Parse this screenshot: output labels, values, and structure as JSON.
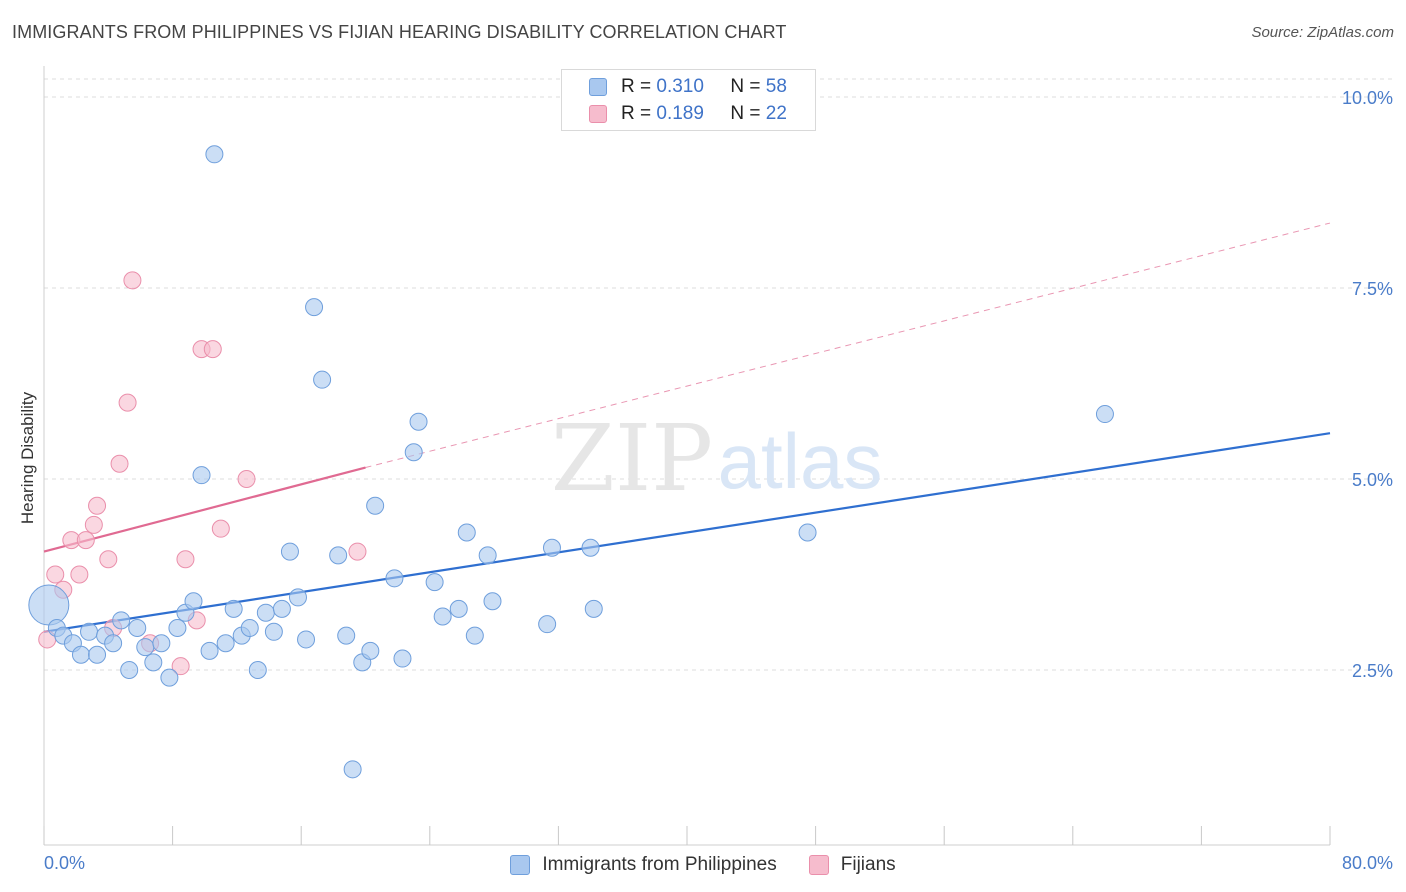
{
  "header": {
    "title": "IMMIGRANTS FROM PHILIPPINES VS FIJIAN HEARING DISABILITY CORRELATION CHART",
    "source": "Source: ZipAtlas.com"
  },
  "watermark": {
    "zip": "ZIP",
    "atlas": "atlas"
  },
  "legend_top": {
    "rows": [
      {
        "r_label": "R =",
        "r_value": "0.310",
        "n_label": "N =",
        "n_value": "58"
      },
      {
        "r_label": "R =",
        "r_value": "0.189",
        "n_label": "N =",
        "n_value": "22"
      }
    ]
  },
  "legend_bottom": {
    "items": [
      {
        "label": "Immigrants from Philippines"
      },
      {
        "label": "Fijians"
      }
    ]
  },
  "axis": {
    "x_min_label": "0.0%",
    "x_max_label": "80.0%",
    "ylabel": "Hearing Disability",
    "y_tick_labels": [
      "2.5%",
      "5.0%",
      "7.5%",
      "10.0%"
    ]
  },
  "colors": {
    "blue_fill": "#a9c8ef",
    "blue_stroke": "#6f9fdc",
    "blue_line": "#2f6fd0",
    "pink_fill": "#f6bccd",
    "pink_stroke": "#ea8fab",
    "pink_line": "#e06a92",
    "grid": "#dddddd",
    "tick_text": "#4a7cc9"
  },
  "chart_data": {
    "type": "scatter",
    "title": "IMMIGRANTS FROM PHILIPPINES VS FIJIAN HEARING DISABILITY CORRELATION CHART",
    "xlabel": "",
    "ylabel": "Hearing Disability",
    "xlim": [
      0,
      80
    ],
    "ylim": [
      0,
      10
    ],
    "x_unit": "%",
    "y_unit": "%",
    "y_ticks": [
      2.5,
      5.0,
      7.5,
      10.0
    ],
    "grid": true,
    "legend_position": "top-center",
    "series": [
      {
        "name": "Immigrants from Philippines",
        "color": "blue",
        "r": 0.31,
        "n": 58,
        "trend": {
          "x0": 0,
          "y0": 3.0,
          "x1": 80,
          "y1": 5.6
        },
        "points": [
          [
            0.3,
            3.35,
            "large"
          ],
          [
            0.8,
            3.05
          ],
          [
            1.2,
            2.95
          ],
          [
            1.8,
            2.85
          ],
          [
            2.3,
            2.7
          ],
          [
            2.8,
            3.0
          ],
          [
            3.3,
            2.7
          ],
          [
            3.8,
            2.95
          ],
          [
            4.3,
            2.85
          ],
          [
            4.8,
            3.15
          ],
          [
            5.3,
            2.5
          ],
          [
            5.8,
            3.05
          ],
          [
            6.3,
            2.8
          ],
          [
            6.8,
            2.6
          ],
          [
            7.3,
            2.85
          ],
          [
            7.8,
            2.4
          ],
          [
            8.3,
            3.05
          ],
          [
            8.8,
            3.25
          ],
          [
            9.3,
            3.4
          ],
          [
            9.8,
            5.05
          ],
          [
            10.3,
            2.75
          ],
          [
            10.6,
            9.25
          ],
          [
            11.3,
            2.85
          ],
          [
            11.8,
            3.3
          ],
          [
            12.3,
            2.95
          ],
          [
            12.8,
            3.05
          ],
          [
            13.3,
            2.5
          ],
          [
            13.8,
            3.25
          ],
          [
            14.3,
            3.0
          ],
          [
            14.8,
            3.3
          ],
          [
            15.3,
            4.05
          ],
          [
            15.8,
            3.45
          ],
          [
            16.3,
            2.9
          ],
          [
            16.8,
            7.25
          ],
          [
            17.3,
            6.3
          ],
          [
            18.3,
            4.0
          ],
          [
            18.8,
            2.95
          ],
          [
            19.8,
            2.6
          ],
          [
            20.3,
            2.75
          ],
          [
            20.6,
            4.65
          ],
          [
            21.8,
            3.7
          ],
          [
            22.3,
            2.65
          ],
          [
            23.0,
            5.35
          ],
          [
            23.3,
            5.75
          ],
          [
            24.3,
            3.65
          ],
          [
            24.8,
            3.2
          ],
          [
            25.8,
            3.3
          ],
          [
            26.3,
            4.3
          ],
          [
            26.8,
            2.95
          ],
          [
            27.6,
            4.0
          ],
          [
            27.9,
            3.4
          ],
          [
            31.3,
            3.1
          ],
          [
            31.6,
            4.1
          ],
          [
            34.0,
            4.1
          ],
          [
            34.2,
            3.3
          ],
          [
            47.5,
            4.3
          ],
          [
            66.0,
            5.85
          ],
          [
            19.2,
            1.2
          ]
        ]
      },
      {
        "name": "Fijians",
        "color": "pink",
        "r": 0.189,
        "n": 22,
        "trend": {
          "x0": 0,
          "y0": 4.05,
          "x1": 20,
          "y1": 5.15,
          "dashed_to_x": 80,
          "dashed_to_y": 8.35
        },
        "points": [
          [
            0.2,
            2.9
          ],
          [
            0.7,
            3.75
          ],
          [
            1.2,
            3.55
          ],
          [
            1.7,
            4.2
          ],
          [
            2.2,
            3.75
          ],
          [
            2.6,
            4.2
          ],
          [
            3.1,
            4.4
          ],
          [
            3.3,
            4.65
          ],
          [
            4.0,
            3.95
          ],
          [
            4.3,
            3.05
          ],
          [
            4.7,
            5.2
          ],
          [
            5.2,
            6.0
          ],
          [
            5.5,
            7.6
          ],
          [
            6.6,
            2.85
          ],
          [
            8.5,
            2.55
          ],
          [
            8.8,
            3.95
          ],
          [
            9.5,
            3.15
          ],
          [
            9.8,
            6.7
          ],
          [
            10.5,
            6.7
          ],
          [
            11.0,
            4.35
          ],
          [
            12.6,
            5.0
          ],
          [
            19.5,
            4.05
          ]
        ]
      }
    ]
  }
}
